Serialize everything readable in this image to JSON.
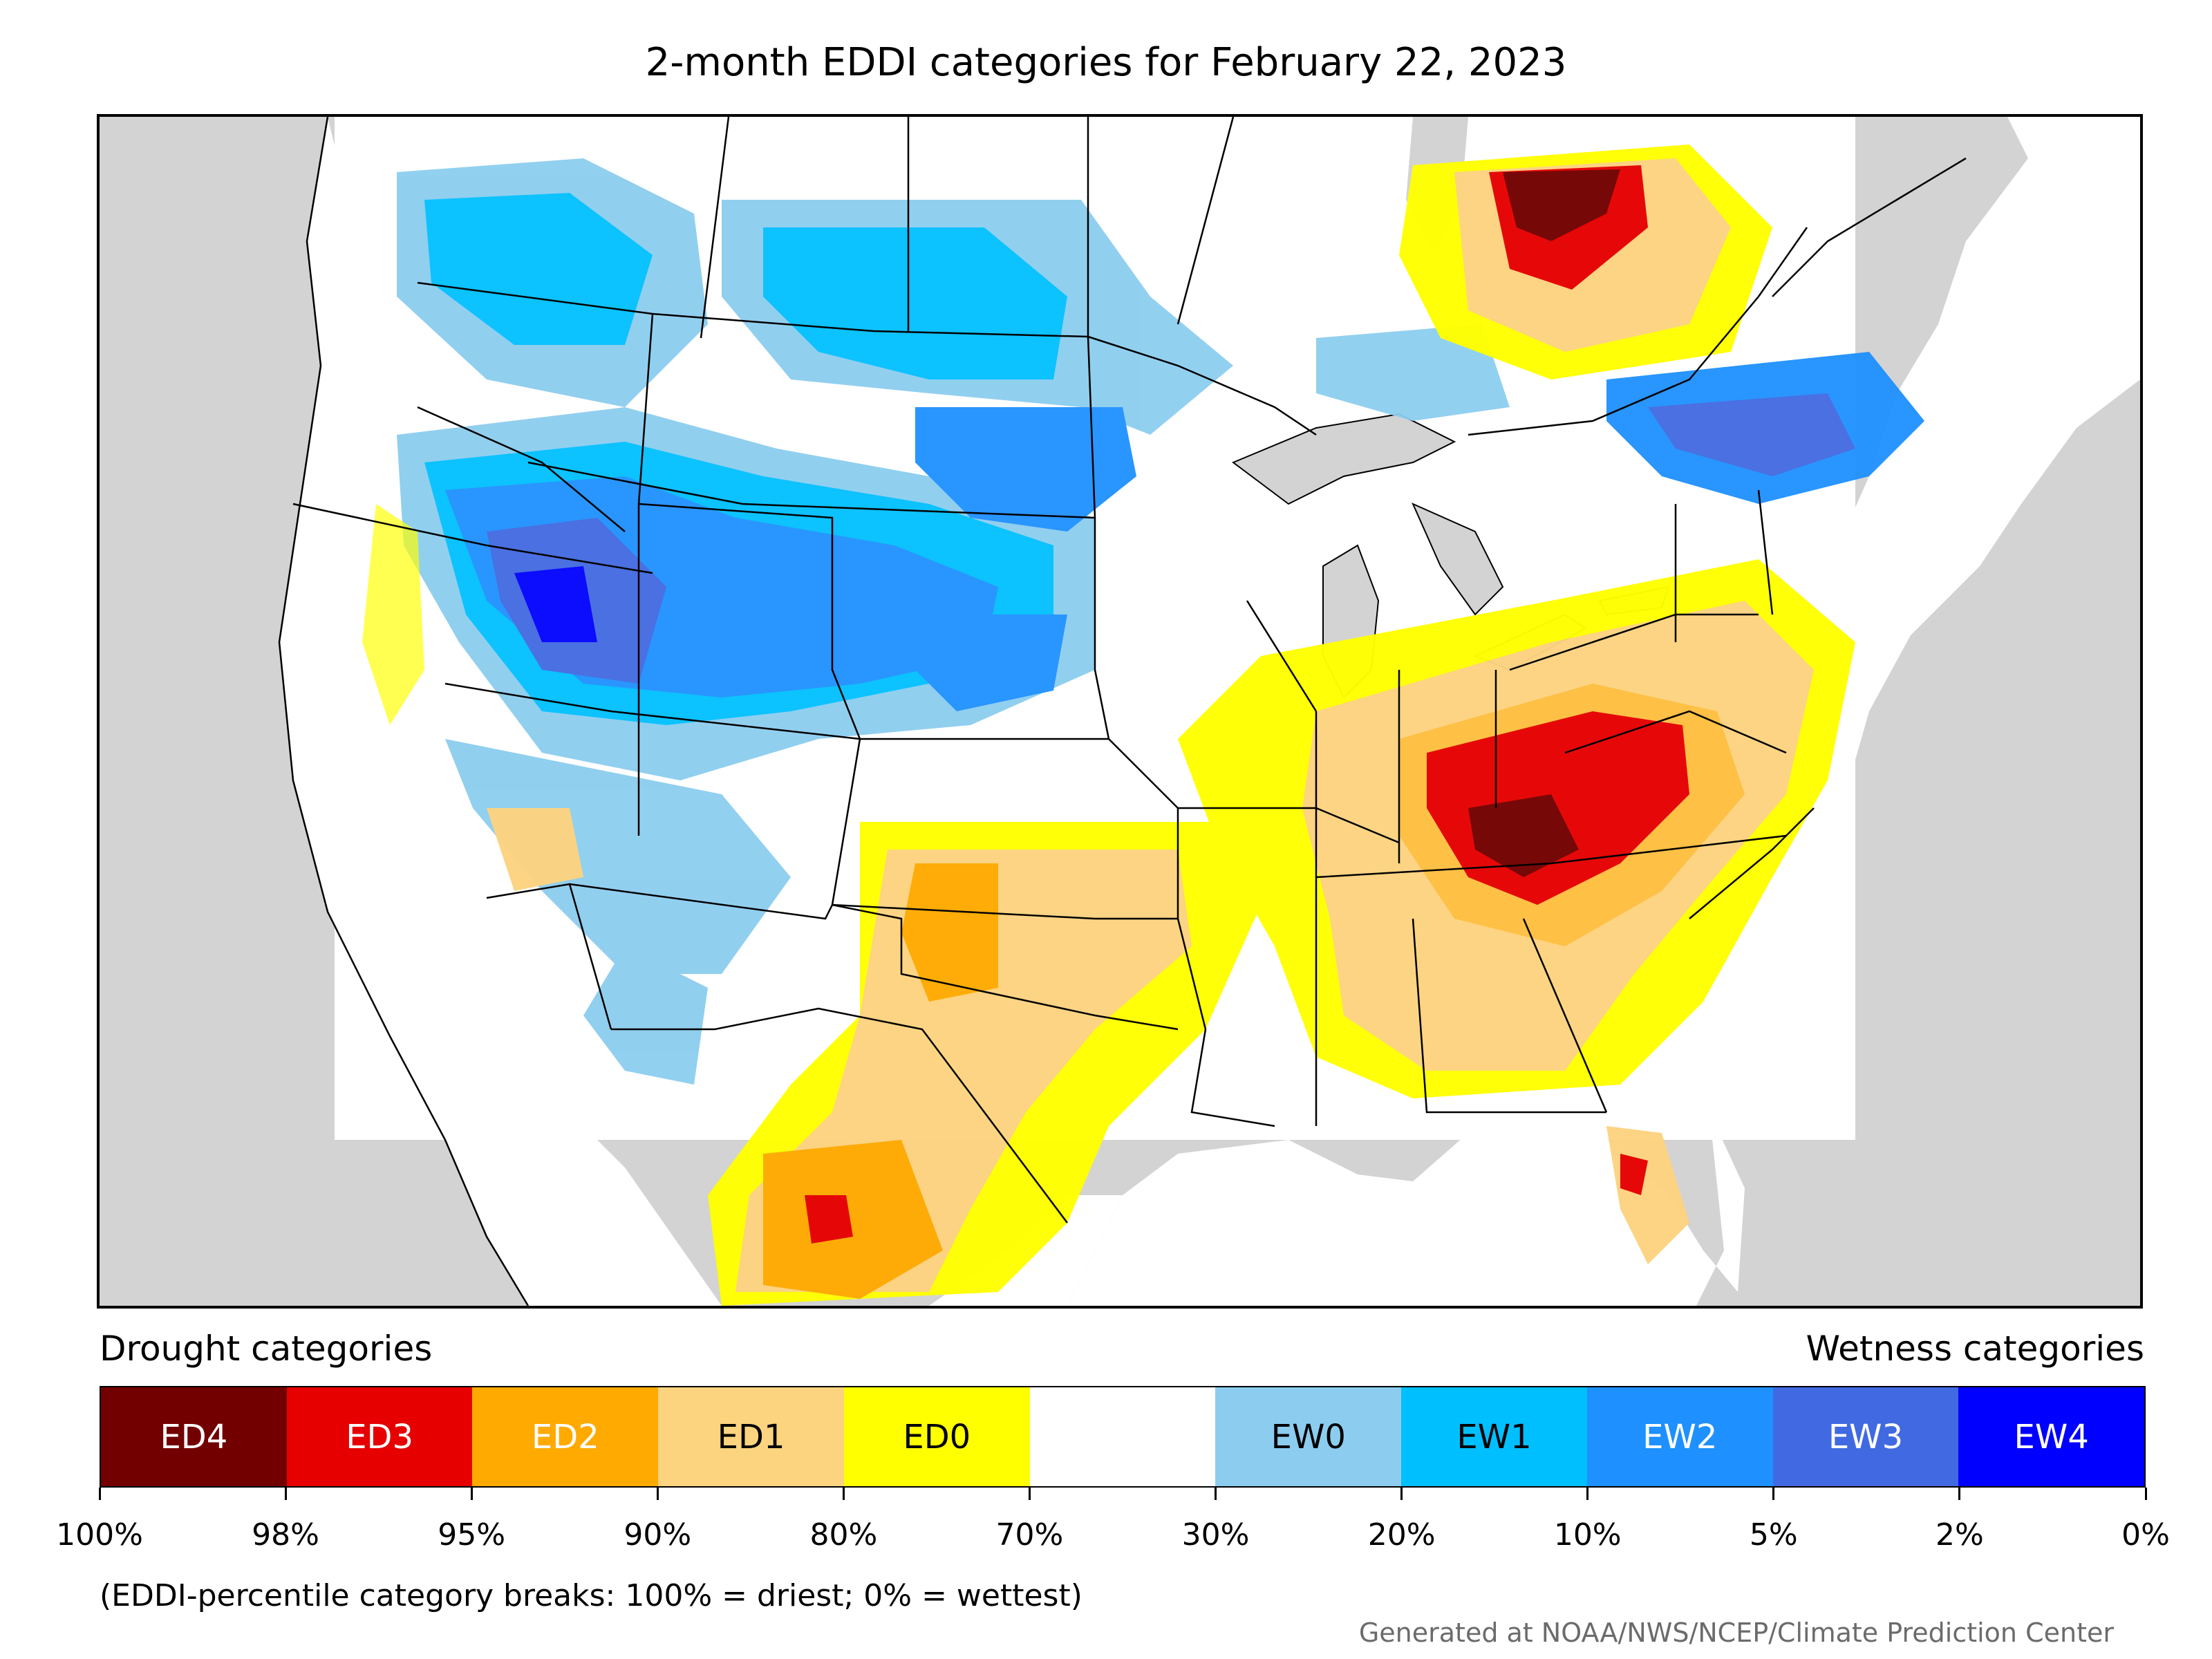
{
  "title": "2-month EDDI categories for February 22, 2023",
  "legend": {
    "drought_heading": "Drought categories",
    "wetness_heading": "Wetness categories",
    "categories": [
      {
        "label": "ED4",
        "color": "#730000",
        "text_color": "#ffffff"
      },
      {
        "label": "ED3",
        "color": "#e60000",
        "text_color": "#ffffff"
      },
      {
        "label": "ED2",
        "color": "#ffaa00",
        "text_color": "#ffffff"
      },
      {
        "label": "ED1",
        "color": "#fcd37f",
        "text_color": "#000000"
      },
      {
        "label": "ED0",
        "color": "#ffff00",
        "text_color": "#000000"
      },
      {
        "label": "",
        "color": "#ffffff",
        "text_color": "#000000"
      },
      {
        "label": "EW0",
        "color": "#8ccdef",
        "text_color": "#000000"
      },
      {
        "label": "EW1",
        "color": "#00bfff",
        "text_color": "#000000"
      },
      {
        "label": "EW2",
        "color": "#1e90ff",
        "text_color": "#ffffff"
      },
      {
        "label": "EW3",
        "color": "#4169e1",
        "text_color": "#ffffff"
      },
      {
        "label": "EW4",
        "color": "#0000ff",
        "text_color": "#ffffff"
      }
    ],
    "breaks": [
      "100%",
      "98%",
      "95%",
      "90%",
      "80%",
      "70%",
      "30%",
      "20%",
      "10%",
      "5%",
      "2%",
      "0%"
    ]
  },
  "footnote": "(EDDI-percentile category breaks: 100% = driest; 0% = wettest)",
  "credit": "Generated at NOAA/NWS/NCEP/Climate Prediction Center",
  "map": {
    "background_color": "#d3d3d3",
    "land_color": "#ffffff",
    "boundary_color": "#000000"
  }
}
